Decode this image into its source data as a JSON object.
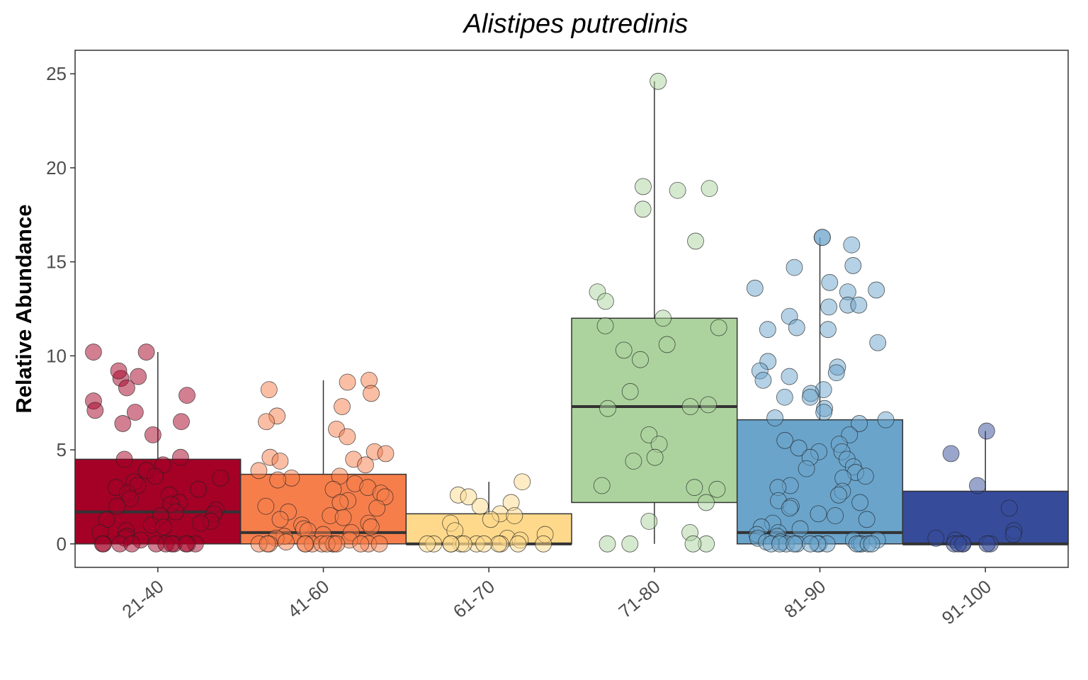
{
  "chart_data": {
    "type": "box",
    "title": "Alistipes putredinis",
    "xlabel": "",
    "ylabel": "Relative Abundance",
    "ylim": [
      -1.25,
      26.25
    ],
    "yticks": [
      0,
      5,
      10,
      15,
      20,
      25
    ],
    "grid": false,
    "legend": "none",
    "categories": [
      "21-40",
      "41-60",
      "61-70",
      "71-80",
      "81-90",
      "91-100"
    ],
    "colors": [
      "#a50026",
      "#f67e4b",
      "#fed98b",
      "#acd39e",
      "#6aa4cb",
      "#364b9a"
    ],
    "boxes": [
      {
        "group": "21-40",
        "q1": 0.0,
        "median": 1.7,
        "q3": 4.5,
        "whisker_low": 0.0,
        "whisker_high": 10.2
      },
      {
        "group": "41-60",
        "q1": 0.0,
        "median": 0.6,
        "q3": 3.7,
        "whisker_low": 0.0,
        "whisker_high": 8.7
      },
      {
        "group": "61-70",
        "q1": 0.0,
        "median": 0.0,
        "q3": 1.6,
        "whisker_low": 0.0,
        "whisker_high": 3.3
      },
      {
        "group": "71-80",
        "q1": 2.2,
        "median": 7.3,
        "q3": 12.0,
        "whisker_low": 0.0,
        "whisker_high": 24.6
      },
      {
        "group": "81-90",
        "q1": 0.0,
        "median": 0.6,
        "q3": 6.6,
        "whisker_low": 0.0,
        "whisker_high": 16.3
      },
      {
        "group": "91-100",
        "q1": 0.0,
        "median": 0.0,
        "q3": 2.8,
        "whisker_low": 0.0,
        "whisker_high": 6.0
      }
    ],
    "points": [
      {
        "group": "21-40",
        "values": [
          10.2,
          10.2,
          8.9,
          8.8,
          8.3,
          9.2,
          7.9,
          7.6,
          7.1,
          7.0,
          6.5,
          6.4,
          5.8,
          4.6,
          4.5,
          4.2,
          3.9,
          3.6,
          3.5,
          3.3,
          3.1,
          3.0,
          2.9,
          2.7,
          2.6,
          2.4,
          2.2,
          2.1,
          2.0,
          1.8,
          1.7,
          1.6,
          1.5,
          1.3,
          1.2,
          1.1,
          1.0,
          0.9,
          0.7,
          0.6,
          0.4,
          0.3,
          0.2,
          0.0,
          0.0,
          0.0,
          0.0,
          0.0,
          0.0,
          0.0,
          0.0,
          0.0,
          0.0,
          0.0
        ]
      },
      {
        "group": "41-60",
        "values": [
          8.7,
          8.6,
          8.2,
          8.0,
          7.3,
          6.8,
          6.5,
          6.1,
          5.7,
          4.9,
          4.8,
          4.6,
          4.5,
          4.4,
          4.2,
          3.9,
          3.6,
          3.5,
          3.4,
          3.2,
          3.0,
          2.9,
          2.7,
          2.5,
          2.3,
          2.2,
          2.0,
          1.9,
          1.7,
          1.5,
          1.4,
          1.3,
          1.1,
          1.0,
          0.9,
          0.8,
          0.7,
          0.6,
          0.5,
          0.4,
          0.3,
          0.2,
          0.1,
          0.0,
          0.0,
          0.0,
          0.0,
          0.0,
          0.0,
          0.0,
          0.0,
          0.0,
          0.0,
          0.0,
          0.0,
          0.0,
          0.0
        ]
      },
      {
        "group": "61-70",
        "values": [
          3.3,
          2.6,
          2.5,
          2.2,
          2.0,
          1.6,
          1.5,
          1.3,
          1.1,
          0.7,
          0.5,
          0.3,
          0.2,
          0.0,
          0.0,
          0.0,
          0.0,
          0.0,
          0.0,
          0.0,
          0.0,
          0.0,
          0.0,
          0.0,
          0.0
        ]
      },
      {
        "group": "71-80",
        "values": [
          24.6,
          19.0,
          18.9,
          18.8,
          17.8,
          16.1,
          13.4,
          12.9,
          12.0,
          11.6,
          11.5,
          10.6,
          10.3,
          9.8,
          8.1,
          7.4,
          7.3,
          7.2,
          5.8,
          5.3,
          4.6,
          4.4,
          3.1,
          3.0,
          2.9,
          2.2,
          1.2,
          0.6,
          0.0,
          0.0,
          0.0,
          0.0
        ]
      },
      {
        "group": "81-90",
        "values": [
          16.3,
          16.3,
          15.9,
          14.8,
          14.7,
          13.9,
          13.6,
          13.5,
          13.4,
          12.7,
          12.7,
          12.6,
          12.1,
          11.5,
          11.4,
          11.4,
          10.7,
          9.7,
          9.4,
          9.2,
          9.1,
          8.9,
          8.7,
          8.2,
          8.0,
          7.8,
          7.8,
          7.2,
          7.0,
          6.7,
          6.6,
          6.4,
          5.8,
          5.5,
          5.3,
          5.1,
          4.9,
          4.9,
          4.6,
          4.5,
          4.1,
          4.0,
          3.8,
          3.6,
          3.5,
          3.1,
          3.0,
          2.8,
          2.6,
          2.3,
          2.2,
          2.0,
          1.9,
          1.6,
          1.5,
          1.3,
          1.1,
          0.9,
          0.8,
          0.6,
          0.5,
          0.4,
          0.3,
          0.2,
          0.2,
          0.1,
          0.1,
          0.0,
          0.0,
          0.0,
          0.0,
          0.0,
          0.0,
          0.0,
          0.0,
          0.0,
          0.0,
          0.0,
          0.0,
          0.0,
          0.0
        ]
      },
      {
        "group": "91-100",
        "values": [
          6.0,
          4.8,
          3.1,
          1.9,
          0.7,
          0.5,
          0.3,
          0.2,
          0.0,
          0.0,
          0.0,
          0.0,
          0.0,
          0.0
        ]
      }
    ]
  }
}
